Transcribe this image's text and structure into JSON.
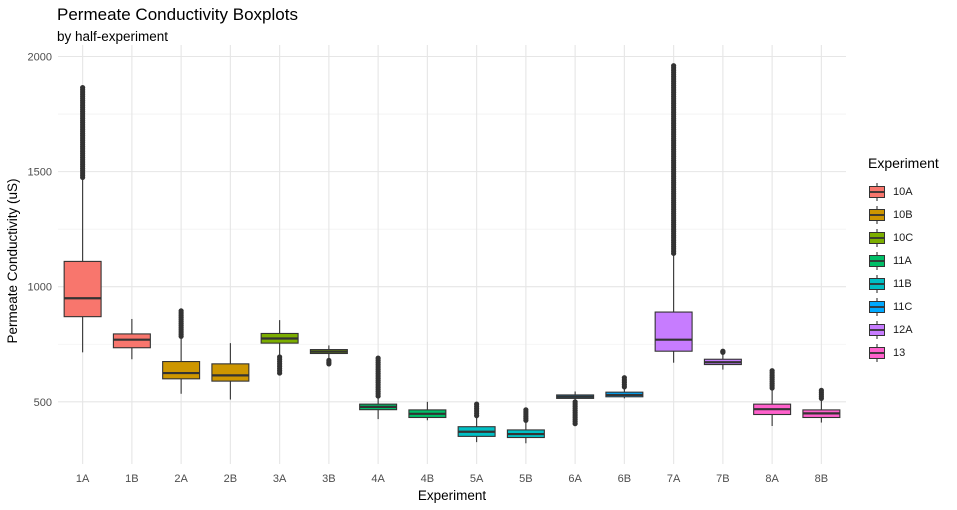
{
  "chart_data": {
    "type": "boxplot",
    "title": "Permeate Conductivity Boxplots",
    "subtitle": "by half-experiment",
    "xlabel": "Experiment",
    "ylabel": "Permeate Conductivity (uS)",
    "ylim": [
      230,
      2050
    ],
    "yticks": [
      500,
      1000,
      1500,
      2000
    ],
    "grid": true,
    "legend": {
      "title": "Experiment",
      "position": "right",
      "entries": [
        {
          "label": "10A",
          "color": "#F8766D"
        },
        {
          "label": "10B",
          "color": "#CD9600"
        },
        {
          "label": "10C",
          "color": "#7CAE00"
        },
        {
          "label": "11A",
          "color": "#00BE67"
        },
        {
          "label": "11B",
          "color": "#00BFC4"
        },
        {
          "label": "11C",
          "color": "#00A9FF"
        },
        {
          "label": "12A",
          "color": "#C77CFF"
        },
        {
          "label": "13",
          "color": "#FF61CC"
        }
      ]
    },
    "boxes": [
      {
        "category": "1A",
        "group": "10A",
        "min": 715,
        "q1": 870,
        "median": 950,
        "q3": 1110,
        "max": 1470,
        "outliers_range": [
          1475,
          1865
        ]
      },
      {
        "category": "1B",
        "group": "10A",
        "min": 685,
        "q1": 735,
        "median": 770,
        "q3": 795,
        "max": 860,
        "outliers_range": null
      },
      {
        "category": "2A",
        "group": "10B",
        "min": 535,
        "q1": 600,
        "median": 625,
        "q3": 675,
        "max": 780,
        "outliers_range": [
          785,
          895
        ]
      },
      {
        "category": "2B",
        "group": "10B",
        "min": 510,
        "q1": 590,
        "median": 615,
        "q3": 665,
        "max": 755,
        "outliers_range": null
      },
      {
        "category": "3A",
        "group": "10C",
        "min": 700,
        "q1": 755,
        "median": 775,
        "q3": 797,
        "max": 855,
        "outliers_range": [
          625,
          695
        ]
      },
      {
        "category": "3B",
        "group": "10C",
        "min": 685,
        "q1": 710,
        "median": 718,
        "q3": 727,
        "max": 745,
        "outliers_range": [
          665,
          680
        ]
      },
      {
        "category": "4A",
        "group": "11A",
        "min": 425,
        "q1": 466,
        "median": 478,
        "q3": 490,
        "max": 520,
        "outliers_range": [
          525,
          690
        ]
      },
      {
        "category": "4B",
        "group": "11A",
        "min": 420,
        "q1": 432,
        "median": 448,
        "q3": 465,
        "max": 500,
        "outliers_range": null
      },
      {
        "category": "5A",
        "group": "11B",
        "min": 325,
        "q1": 350,
        "median": 370,
        "q3": 392,
        "max": 430,
        "outliers_range": [
          440,
          490
        ]
      },
      {
        "category": "5B",
        "group": "11B",
        "min": 320,
        "q1": 345,
        "median": 360,
        "q3": 378,
        "max": 410,
        "outliers_range": [
          420,
          465
        ]
      },
      {
        "category": "6A",
        "group": "11C",
        "min": 505,
        "q1": 515,
        "median": 522,
        "q3": 530,
        "max": 545,
        "outliers_range": [
          405,
          500
        ]
      },
      {
        "category": "6B",
        "group": "11C",
        "min": 515,
        "q1": 522,
        "median": 530,
        "q3": 542,
        "max": 560,
        "outliers_range": [
          565,
          605
        ]
      },
      {
        "category": "7A",
        "group": "12A",
        "min": 670,
        "q1": 720,
        "median": 770,
        "q3": 890,
        "max": 1140,
        "outliers_range": [
          1145,
          1960
        ]
      },
      {
        "category": "7B",
        "group": "12A",
        "min": 640,
        "q1": 662,
        "median": 672,
        "q3": 685,
        "max": 710,
        "outliers_range": [
          715,
          720
        ]
      },
      {
        "category": "8A",
        "group": "13",
        "min": 395,
        "q1": 445,
        "median": 468,
        "q3": 490,
        "max": 555,
        "outliers_range": [
          560,
          635
        ]
      },
      {
        "category": "8B",
        "group": "13",
        "min": 410,
        "q1": 432,
        "median": 450,
        "q3": 465,
        "max": 510,
        "outliers_range": [
          515,
          550
        ]
      }
    ]
  }
}
